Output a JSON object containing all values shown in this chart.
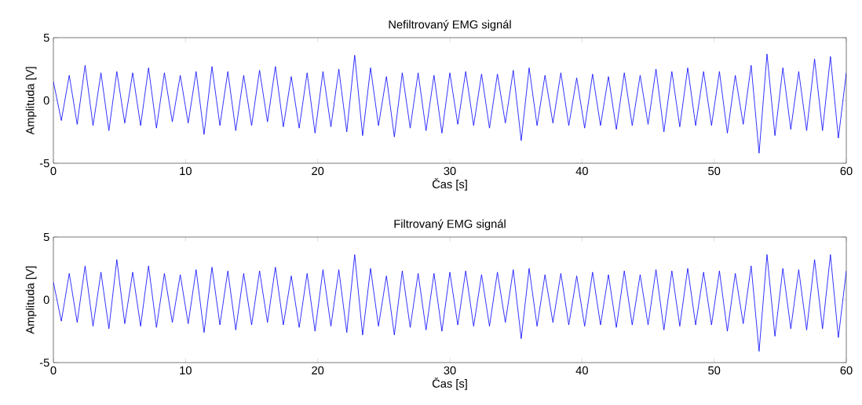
{
  "chart_data": [
    {
      "type": "line",
      "title": "Nefiltrovaný EMG signál",
      "xlabel": "Čas [s]",
      "ylabel": "Amplituda [V]",
      "xlim": [
        0,
        60
      ],
      "ylim": [
        -5,
        5
      ],
      "xticks": [
        0,
        10,
        20,
        30,
        40,
        50,
        60
      ],
      "yticks": [
        -5,
        0,
        5
      ],
      "line_style": "solid",
      "x": [
        0,
        0.6,
        1.2,
        1.8,
        2.4,
        3.0,
        3.6,
        4.2,
        4.8,
        5.4,
        6.0,
        6.6,
        7.2,
        7.8,
        8.4,
        9.0,
        9.6,
        10.2,
        10.8,
        11.4,
        12.0,
        12.6,
        13.2,
        13.8,
        14.4,
        15.0,
        15.6,
        16.2,
        16.8,
        17.4,
        18.0,
        18.6,
        19.2,
        19.8,
        20.4,
        21.0,
        21.6,
        22.2,
        22.8,
        23.4,
        24.0,
        24.6,
        25.2,
        25.8,
        26.4,
        27.0,
        27.6,
        28.2,
        28.8,
        29.4,
        30.0,
        30.6,
        31.2,
        31.8,
        32.4,
        33.0,
        33.6,
        34.2,
        34.8,
        35.4,
        36.0,
        36.6,
        37.2,
        37.8,
        38.4,
        39.0,
        39.6,
        40.2,
        40.8,
        41.4,
        42.0,
        42.6,
        43.2,
        43.8,
        44.4,
        45.0,
        45.6,
        46.2,
        46.8,
        47.4,
        48.0,
        48.6,
        49.2,
        49.8,
        50.4,
        51.0,
        51.6,
        52.2,
        52.8,
        53.4,
        54.0,
        54.6,
        55.2,
        55.8,
        56.4,
        57.0,
        57.6,
        58.2,
        58.8,
        59.4,
        60.0
      ],
      "series": [
        {
          "color": "#0000ff",
          "values": [
            1.5,
            -1.6,
            2.0,
            -1.9,
            2.8,
            -2.0,
            2.2,
            -2.4,
            2.3,
            -1.8,
            2.2,
            -2.0,
            2.6,
            -2.2,
            2.2,
            -1.7,
            2.0,
            -1.8,
            2.3,
            -2.7,
            2.7,
            -2.0,
            2.3,
            -2.4,
            2.0,
            -2.0,
            2.4,
            -1.7,
            2.7,
            -2.1,
            1.9,
            -2.2,
            2.2,
            -2.6,
            2.3,
            -2.1,
            2.5,
            -2.5,
            3.6,
            -2.8,
            2.6,
            -2.0,
            1.9,
            -2.9,
            2.2,
            -2.2,
            2.2,
            -2.4,
            2.0,
            -2.6,
            2.2,
            -1.9,
            2.3,
            -2.0,
            2.1,
            -2.2,
            2.1,
            -1.8,
            2.4,
            -3.2,
            2.6,
            -2.0,
            2.0,
            -1.8,
            2.2,
            -2.0,
            1.8,
            -2.2,
            2.1,
            -2.0,
            1.9,
            -2.3,
            2.2,
            -2.0,
            2.0,
            -1.9,
            2.5,
            -2.5,
            2.3,
            -2.1,
            2.6,
            -2.0,
            2.3,
            -2.0,
            2.3,
            -2.6,
            2.0,
            -1.9,
            2.8,
            -4.2,
            3.7,
            -2.8,
            2.6,
            -2.3,
            2.3,
            -2.4,
            3.3,
            -2.4,
            3.5,
            -3.0,
            2.2
          ]
        }
      ]
    },
    {
      "type": "line",
      "title": "Filtrovaný EMG signál",
      "xlabel": "Čas [s]",
      "ylabel": "Amplituda [V]",
      "xlim": [
        0,
        60
      ],
      "ylim": [
        -5,
        5
      ],
      "xticks": [
        0,
        10,
        20,
        30,
        40,
        50,
        60
      ],
      "yticks": [
        -5,
        0,
        5
      ],
      "line_style": "solid",
      "x": [
        0,
        0.6,
        1.2,
        1.8,
        2.4,
        3.0,
        3.6,
        4.2,
        4.8,
        5.4,
        6.0,
        6.6,
        7.2,
        7.8,
        8.4,
        9.0,
        9.6,
        10.2,
        10.8,
        11.4,
        12.0,
        12.6,
        13.2,
        13.8,
        14.4,
        15.0,
        15.6,
        16.2,
        16.8,
        17.4,
        18.0,
        18.6,
        19.2,
        19.8,
        20.4,
        21.0,
        21.6,
        22.2,
        22.8,
        23.4,
        24.0,
        24.6,
        25.2,
        25.8,
        26.4,
        27.0,
        27.6,
        28.2,
        28.8,
        29.4,
        30.0,
        30.6,
        31.2,
        31.8,
        32.4,
        33.0,
        33.6,
        34.2,
        34.8,
        35.4,
        36.0,
        36.6,
        37.2,
        37.8,
        38.4,
        39.0,
        39.6,
        40.2,
        40.8,
        41.4,
        42.0,
        42.6,
        43.2,
        43.8,
        44.4,
        45.0,
        45.6,
        46.2,
        46.8,
        47.4,
        48.0,
        48.6,
        49.2,
        49.8,
        50.4,
        51.0,
        51.6,
        52.2,
        52.8,
        53.4,
        54.0,
        54.6,
        55.2,
        55.8,
        56.4,
        57.0,
        57.6,
        58.2,
        58.8,
        59.4,
        60.0
      ],
      "series": [
        {
          "color": "#0000ff",
          "values": [
            1.4,
            -1.7,
            2.1,
            -1.8,
            2.7,
            -2.1,
            2.2,
            -2.3,
            3.2,
            -1.9,
            2.2,
            -2.1,
            2.7,
            -2.2,
            2.1,
            -1.8,
            2.0,
            -1.9,
            2.4,
            -2.6,
            2.6,
            -2.0,
            2.3,
            -2.4,
            2.1,
            -2.0,
            2.3,
            -1.8,
            2.6,
            -2.0,
            1.9,
            -2.2,
            2.1,
            -2.5,
            2.4,
            -2.1,
            2.4,
            -2.6,
            3.6,
            -2.8,
            2.5,
            -2.1,
            1.9,
            -2.8,
            2.3,
            -2.2,
            2.1,
            -2.4,
            2.1,
            -2.5,
            2.2,
            -2.0,
            2.3,
            -2.1,
            2.0,
            -2.1,
            2.2,
            -1.8,
            2.4,
            -3.1,
            2.5,
            -2.1,
            2.0,
            -1.8,
            2.1,
            -2.0,
            1.9,
            -2.1,
            2.2,
            -2.0,
            2.0,
            -2.2,
            2.3,
            -2.0,
            2.0,
            -2.0,
            2.4,
            -2.4,
            2.3,
            -2.1,
            2.5,
            -2.0,
            2.2,
            -2.0,
            2.3,
            -2.5,
            2.1,
            -1.9,
            2.7,
            -4.1,
            3.6,
            -2.9,
            2.5,
            -2.3,
            2.4,
            -2.4,
            3.2,
            -2.3,
            3.6,
            -3.0,
            2.3
          ]
        }
      ]
    }
  ]
}
